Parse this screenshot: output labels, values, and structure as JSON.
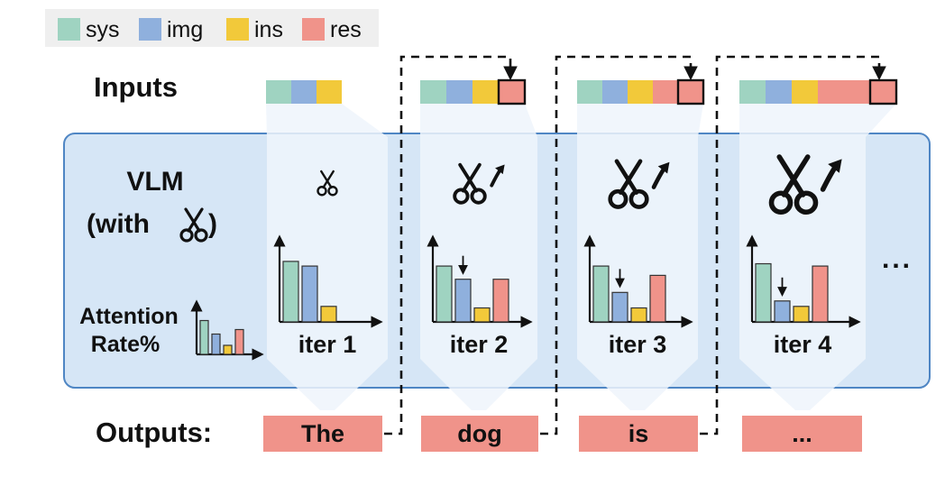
{
  "legend": [
    {
      "key": "sys",
      "label": "sys",
      "color": "#9fd3c1"
    },
    {
      "key": "img",
      "label": "img",
      "color": "#8fb0dd"
    },
    {
      "key": "ins",
      "label": "ins",
      "color": "#f2c93a"
    },
    {
      "key": "res",
      "label": "res",
      "color": "#f0938a"
    }
  ],
  "labels": {
    "inputs": "Inputs",
    "outputs": "Outputs:",
    "vlm_line1": "VLM",
    "vlm_line2_prefix": "(with",
    "vlm_line2_suffix": ")",
    "attention_line1": "Attention",
    "attention_line2": "Rate%",
    "more": "..."
  },
  "colors": {
    "vlm_fill": "#d6e6f6",
    "vlm_stroke": "#4f86c4",
    "column_fill": "#eef4fb"
  },
  "iterations": [
    {
      "label": "iter 1",
      "output": "The",
      "inputs": [
        "sys",
        "img",
        "ins"
      ],
      "highlight_last": false,
      "pruning_growth": false,
      "attention": {
        "sys": 0.78,
        "img": 0.72,
        "ins": 0.2,
        "res": 0.0
      }
    },
    {
      "label": "iter 2",
      "output": "dog",
      "inputs": [
        "sys",
        "img",
        "ins",
        "res"
      ],
      "highlight_last": true,
      "pruning_growth": true,
      "attention": {
        "sys": 0.72,
        "img": 0.55,
        "ins": 0.18,
        "res": 0.55
      }
    },
    {
      "label": "iter 3",
      "output": "is",
      "inputs": [
        "sys",
        "img",
        "ins",
        "res",
        "res"
      ],
      "highlight_last": true,
      "pruning_growth": true,
      "attention": {
        "sys": 0.72,
        "img": 0.38,
        "ins": 0.18,
        "res": 0.6
      }
    },
    {
      "label": "iter 4",
      "output": "...",
      "inputs": [
        "sys",
        "img",
        "ins",
        "res",
        "res",
        "res"
      ],
      "highlight_last": true,
      "pruning_growth": true,
      "attention": {
        "sys": 0.75,
        "img": 0.27,
        "ins": 0.2,
        "res": 0.72
      }
    }
  ],
  "legend_chart_attention": {
    "sys": 0.75,
    "img": 0.45,
    "ins": 0.2,
    "res": 0.55
  }
}
